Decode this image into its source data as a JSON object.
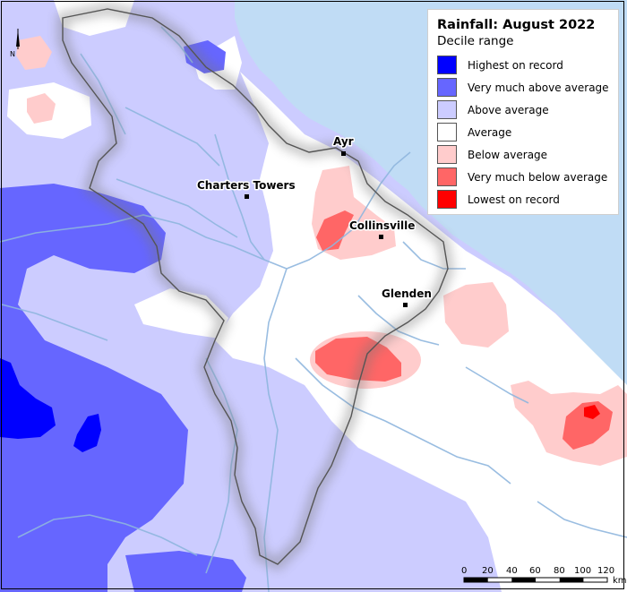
{
  "legend": {
    "title": "Rainfall: August 2022",
    "subtitle": "Decile range",
    "items": [
      {
        "label": "Highest on record",
        "color": "#0000ff"
      },
      {
        "label": "Very much above average",
        "color": "#6666ff"
      },
      {
        "label": "Above average",
        "color": "#ccccff"
      },
      {
        "label": "Average",
        "color": "#ffffff"
      },
      {
        "label": "Below average",
        "color": "#ffcccc"
      },
      {
        "label": "Very much below average",
        "color": "#ff6666"
      },
      {
        "label": "Lowest on record",
        "color": "#ff0000"
      }
    ]
  },
  "towns": [
    {
      "name": "Ayr"
    },
    {
      "name": "Charters Towers"
    },
    {
      "name": "Collinsville"
    },
    {
      "name": "Glenden"
    }
  ],
  "scale_bar": {
    "ticks": [
      "0",
      "20",
      "40",
      "60",
      "80",
      "100",
      "120"
    ],
    "unit": "km"
  },
  "north_arrow": {
    "label": "N"
  },
  "colors": {
    "sea": "#c0dcf5",
    "river": "#8fb6de",
    "outside_region": "#eeeeee"
  }
}
